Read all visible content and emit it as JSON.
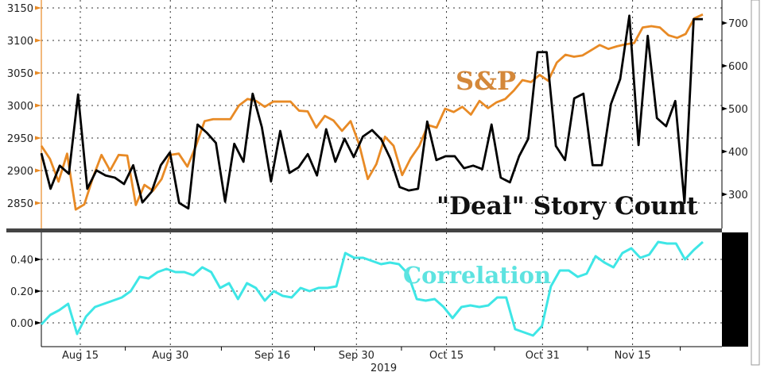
{
  "chart_data": [
    {
      "type": "line",
      "panel": "top",
      "annotations": [
        "S&P",
        "\"Deal\" Story Count"
      ],
      "x_range": [
        "2019-08-08",
        "2019-11-26"
      ],
      "left_axis": {
        "ticks": [
          2850,
          2900,
          2950,
          3000,
          3050,
          3100,
          3150
        ],
        "range": [
          2810,
          3162
        ]
      },
      "right_axis": {
        "ticks": [
          300,
          400,
          500,
          600,
          700
        ],
        "range": [
          220,
          755
        ]
      },
      "grid": true,
      "series": [
        {
          "name": "S&P",
          "axis": "left",
          "color": "#e88a25",
          "values": [
            2938,
            2918,
            2883,
            2926,
            2840,
            2848,
            2889,
            2924,
            2900,
            2924,
            2923,
            2847,
            2878,
            2869,
            2887,
            2924,
            2926,
            2906,
            2938,
            2976,
            2979,
            2979,
            2979,
            3000,
            3010,
            3007,
            2998,
            3006,
            3006,
            3006,
            2992,
            2991,
            2966,
            2984,
            2977,
            2961,
            2976,
            2940,
            2887,
            2910,
            2952,
            2938,
            2893,
            2919,
            2938,
            2970,
            2966,
            2995,
            2990,
            2998,
            2986,
            3007,
            2996,
            3005,
            3010,
            3023,
            3039,
            3036,
            3047,
            3038,
            3066,
            3078,
            3075,
            3077,
            3085,
            3093,
            3087,
            3091,
            3094,
            3096,
            3120,
            3122,
            3120,
            3108,
            3104,
            3110,
            3134,
            3140
          ]
        },
        {
          "name": "\"Deal\" Story Count",
          "axis": "right",
          "color": "#000000",
          "values": [
            396,
            313,
            367,
            348,
            533,
            313,
            356,
            344,
            339,
            324,
            368,
            281,
            306,
            368,
            398,
            280,
            267,
            463,
            444,
            420,
            283,
            418,
            376,
            535,
            457,
            330,
            448,
            350,
            363,
            394,
            344,
            452,
            376,
            430,
            387,
            435,
            450,
            428,
            383,
            317,
            309,
            313,
            470,
            380,
            389,
            389,
            361,
            367,
            359,
            463,
            339,
            328,
            389,
            430,
            632,
            632,
            413,
            380,
            524,
            535,
            368,
            368,
            511,
            569,
            717,
            415,
            670,
            478,
            459,
            518,
            280,
            709,
            709
          ]
        }
      ]
    },
    {
      "type": "line",
      "panel": "bottom",
      "annotations": [
        "Correlation"
      ],
      "x_range": [
        "2019-08-08",
        "2019-11-26"
      ],
      "left_axis": {
        "ticks": [
          "0.00",
          "0.20",
          "0.40"
        ],
        "range": [
          -0.15,
          0.58
        ]
      },
      "x_ticks": [
        "Aug 15",
        "Aug 30",
        "Sep 16",
        "Sep 30",
        "Oct 15",
        "Oct 31",
        "Nov 15"
      ],
      "x_tick_dates": [
        "2019-08-15",
        "2019-08-30",
        "2019-09-16",
        "2019-09-30",
        "2019-10-15",
        "2019-10-31",
        "2019-11-15"
      ],
      "xlabel": "2019",
      "grid": true,
      "series": [
        {
          "name": "Correlation",
          "color": "#3ee6e6",
          "values": [
            -0.01,
            0.05,
            0.08,
            0.12,
            -0.07,
            0.04,
            0.1,
            0.12,
            0.14,
            0.16,
            0.2,
            0.29,
            0.28,
            0.32,
            0.34,
            0.32,
            0.32,
            0.3,
            0.35,
            0.32,
            0.22,
            0.25,
            0.15,
            0.25,
            0.22,
            0.14,
            0.2,
            0.17,
            0.16,
            0.22,
            0.2,
            0.22,
            0.22,
            0.23,
            0.44,
            0.41,
            0.41,
            0.39,
            0.37,
            0.38,
            0.37,
            0.31,
            0.15,
            0.14,
            0.15,
            0.1,
            0.03,
            0.1,
            0.11,
            0.1,
            0.11,
            0.16,
            0.16,
            -0.04,
            -0.06,
            -0.08,
            -0.02,
            0.23,
            0.33,
            0.33,
            0.29,
            0.31,
            0.42,
            0.38,
            0.35,
            0.44,
            0.47,
            0.41,
            0.43,
            0.51,
            0.5,
            0.5,
            0.4,
            0.46,
            0.51
          ]
        }
      ]
    }
  ]
}
